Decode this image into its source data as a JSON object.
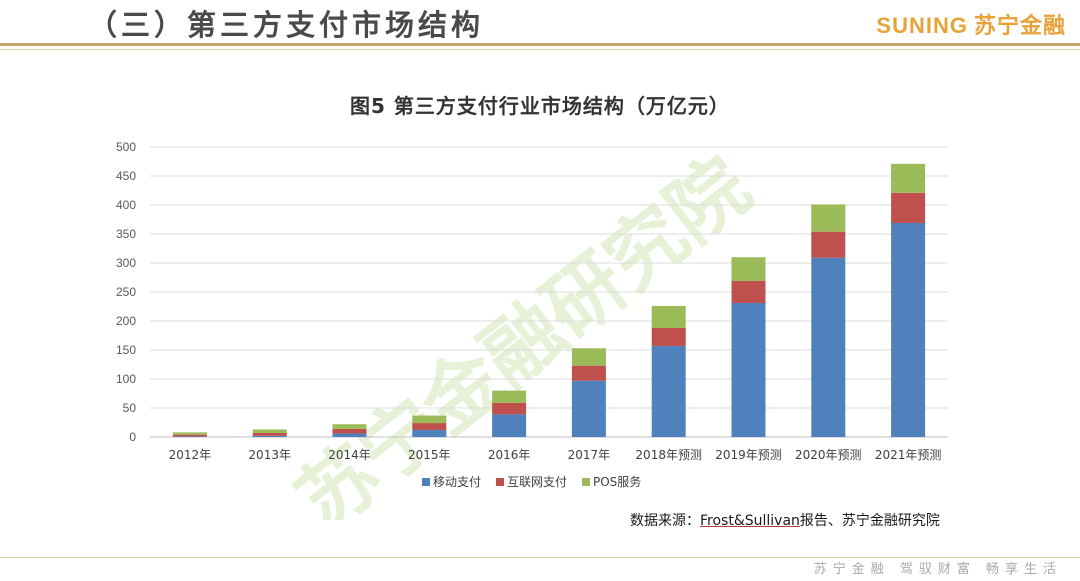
{
  "header": {
    "title": "（三）第三方支付市场结构",
    "brand_latin": "SUNING",
    "brand_cn": "苏宁金融",
    "brand_color": "#e8a23a"
  },
  "footer": {
    "slogan": "苏宁金融 驾驭财富 畅享生活"
  },
  "watermark": {
    "text": "苏宁金融研究院"
  },
  "source": {
    "prefix": "数据来源：",
    "reference": "Frost&Sullivan",
    "suffix": "报告、苏宁金融研究院"
  },
  "chart_data": {
    "type": "bar",
    "stacked": true,
    "title": "图5 第三方支付行业市场结构（万亿元）",
    "categories": [
      "2012年",
      "2013年",
      "2014年",
      "2015年",
      "2016年",
      "2017年",
      "2018年预测",
      "2019年预测",
      "2020年预测",
      "2021年预测"
    ],
    "series": [
      {
        "name": "移动支付",
        "color": "#4f81bd",
        "values": [
          1,
          2,
          6,
          12,
          39,
          97,
          157,
          231,
          309,
          369
        ]
      },
      {
        "name": "互联网支付",
        "color": "#c0504d",
        "values": [
          3,
          5,
          8,
          12,
          20,
          26,
          31,
          38,
          45,
          52
        ]
      },
      {
        "name": "POS服务",
        "color": "#9bbb59",
        "values": [
          4,
          6,
          8,
          13,
          21,
          30,
          38,
          41,
          47,
          50
        ]
      }
    ],
    "ylim": [
      0,
      500
    ],
    "yticks": [
      0,
      50,
      100,
      150,
      200,
      250,
      300,
      350,
      400,
      450,
      500
    ],
    "grid": true,
    "legend_position": "bottom"
  }
}
